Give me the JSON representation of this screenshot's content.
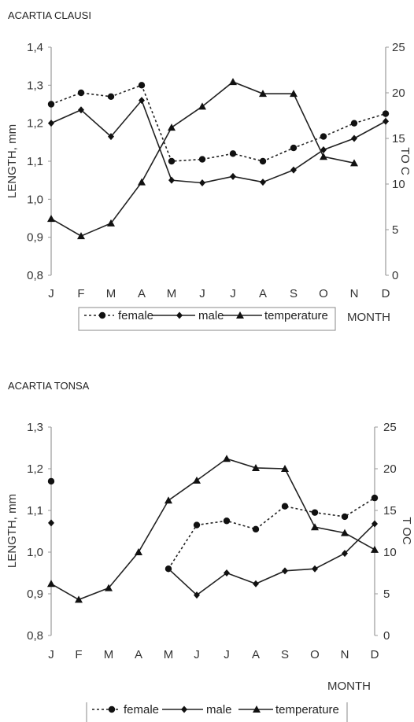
{
  "chart_data": [
    {
      "type": "line",
      "title": "ACARTIA CLAUSI",
      "categories": [
        "J",
        "F",
        "M",
        "A",
        "M",
        "J",
        "J",
        "A",
        "S",
        "O",
        "N",
        "D"
      ],
      "ylabel": "LENGTH, mm",
      "y2label": "TO C",
      "xlabel": "MONTH",
      "ylim": [
        0.8,
        1.4
      ],
      "y2lim": [
        0,
        25
      ],
      "yticks": [
        "0,8",
        "0,9",
        "1,0",
        "1,1",
        "1,2",
        "1,3",
        "1,4"
      ],
      "y2ticks": [
        "0",
        "5",
        "10",
        "15",
        "20",
        "25"
      ],
      "series": [
        {
          "name": "female",
          "axis": "left",
          "marker": "circle",
          "dash": true,
          "values": [
            1.25,
            1.28,
            1.27,
            1.3,
            1.1,
            1.105,
            1.12,
            1.1,
            1.135,
            1.165,
            1.2,
            1.225
          ]
        },
        {
          "name": "male",
          "axis": "left",
          "marker": "diamond",
          "dash": false,
          "values": [
            1.2,
            1.235,
            1.165,
            1.26,
            1.05,
            1.043,
            1.06,
            1.045,
            1.077,
            1.13,
            1.16,
            1.205
          ]
        },
        {
          "name": "temperature",
          "axis": "right",
          "marker": "triangle",
          "dash": false,
          "values": [
            6.2,
            4.3,
            5.7,
            10.2,
            16.2,
            18.5,
            21.2,
            19.9,
            19.9,
            13.0,
            12.3,
            null
          ]
        }
      ],
      "legend": [
        "female",
        "male",
        "temperature"
      ],
      "legend_position": "bottom"
    },
    {
      "type": "line",
      "title": "ACARTIA TONSA",
      "categories": [
        "J",
        "F",
        "M",
        "A",
        "M",
        "J",
        "J",
        "A",
        "S",
        "O",
        "N",
        "D"
      ],
      "ylabel": "LENGTH, mm",
      "y2label": "T OC",
      "xlabel": "MONTH",
      "ylim": [
        0.8,
        1.3
      ],
      "y2lim": [
        0,
        25
      ],
      "yticks": [
        "0,8",
        "0,9",
        "1,0",
        "1,1",
        "1,2",
        "1,3"
      ],
      "y2ticks": [
        "0",
        "5",
        "10",
        "15",
        "20",
        "25"
      ],
      "series": [
        {
          "name": "female",
          "axis": "left",
          "marker": "circle",
          "dash": true,
          "values": [
            1.17,
            null,
            null,
            null,
            0.96,
            1.065,
            1.075,
            1.055,
            1.11,
            1.095,
            1.085,
            1.13
          ]
        },
        {
          "name": "male",
          "axis": "left",
          "marker": "diamond",
          "dash": false,
          "values": [
            1.07,
            null,
            null,
            null,
            0.96,
            0.897,
            0.95,
            0.924,
            0.955,
            0.96,
            0.997,
            1.068
          ]
        },
        {
          "name": "temperature",
          "axis": "right",
          "marker": "triangle",
          "dash": false,
          "values": [
            6.2,
            4.3,
            5.7,
            10.0,
            16.2,
            18.6,
            21.2,
            20.1,
            20.0,
            13.0,
            12.3,
            10.3
          ]
        }
      ],
      "legend": [
        "female",
        "male",
        "temperature"
      ],
      "legend_position": "bottom"
    }
  ]
}
